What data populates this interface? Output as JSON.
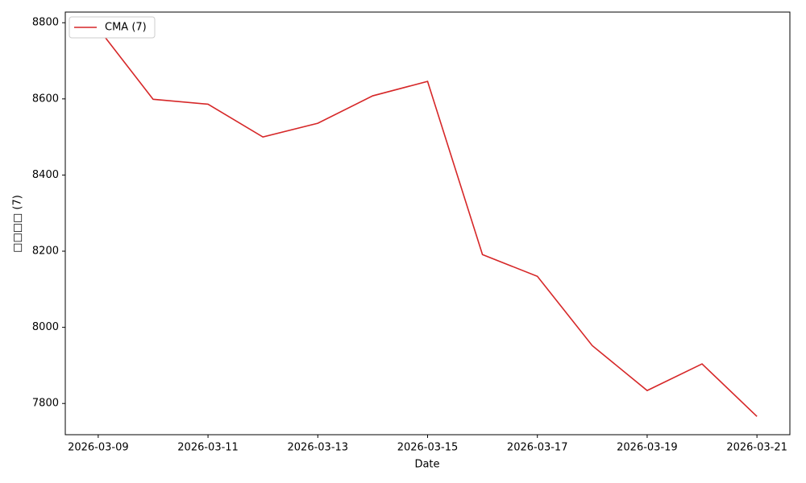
{
  "chart_data": {
    "type": "line",
    "x_label": "Date",
    "y_label": "□□□□ (7)",
    "x": [
      "2026-03-09",
      "2026-03-10",
      "2026-03-11",
      "2026-03-12",
      "2026-03-13",
      "2026-03-14",
      "2026-03-15",
      "2026-03-16",
      "2026-03-17",
      "2026-03-18",
      "2026-03-19",
      "2026-03-20",
      "2026-03-21"
    ],
    "series": [
      {
        "name": "CMA (7)",
        "color": "#d62728",
        "values": [
          8785,
          8599,
          8586,
          8500,
          8536,
          8608,
          8646,
          8191,
          8134,
          7952,
          7834,
          7904,
          7766
        ]
      }
    ],
    "xticks": [
      "2026-03-09",
      "2026-03-11",
      "2026-03-13",
      "2026-03-15",
      "2026-03-17",
      "2026-03-19",
      "2026-03-21"
    ],
    "ylim": [
      7718,
      8828
    ],
    "yticks": [
      7800,
      8000,
      8200,
      8400,
      8600,
      8800
    ],
    "legend": "upper left",
    "grid": false
  }
}
